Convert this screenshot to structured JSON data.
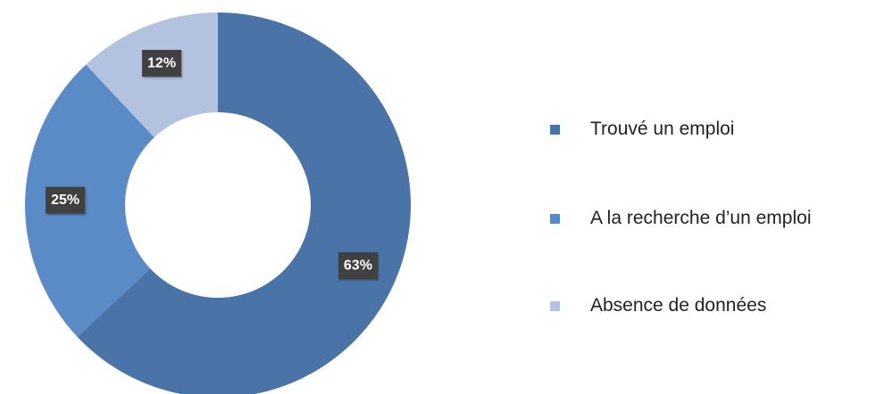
{
  "chart_data": {
    "type": "pie",
    "subtype": "donut",
    "categories": [
      "Trouvé un emploi",
      "A la recherche d’un emploi",
      "Absence de données"
    ],
    "values": [
      63,
      25,
      12
    ],
    "data_labels": [
      "63%",
      "25%",
      "12%"
    ],
    "colors": [
      "#4a74a8",
      "#5b8bc6",
      "#b3c3df"
    ],
    "label_box_color": "#3f3f3f",
    "start_angle_deg": 0,
    "direction": "clockwise",
    "legend_placement": "right"
  },
  "legend": {
    "items": [
      {
        "label": "Trouvé un emploi",
        "color": "#4a74a8"
      },
      {
        "label": "A la recherche d’un emploi",
        "color": "#5b8bc6"
      },
      {
        "label": "Absence de données",
        "color": "#b3c3df"
      }
    ]
  }
}
